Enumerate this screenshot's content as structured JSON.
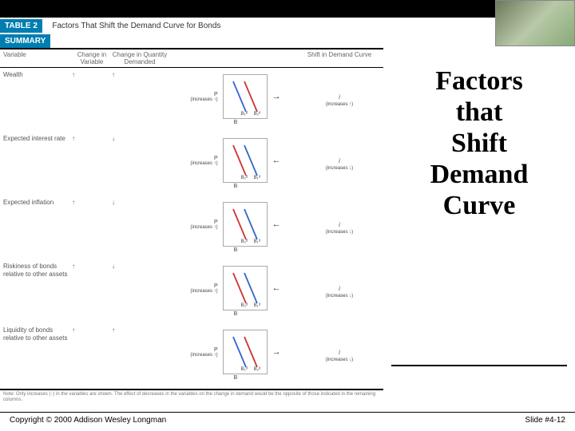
{
  "topbar": {
    "bg": "#000000"
  },
  "table": {
    "badge": "TABLE 2",
    "badge2": "SUMMARY",
    "title": "Factors That Shift the Demand Curve for Bonds",
    "headers": {
      "c1": "Variable",
      "c2": "Change in\nVariable",
      "c3": "Change in\nQuantity Demanded",
      "c4": "",
      "c5": "Shift in\nDemand Curve"
    },
    "rows": [
      {
        "variable": "Wealth",
        "chg_var": "↑",
        "chg_qty": "↑",
        "p_note": "(increases ↑)",
        "i_note": "(increases ↑)",
        "direction": "right",
        "blue_first": true
      },
      {
        "variable": "Expected interest rate",
        "chg_var": "↑",
        "chg_qty": "↓",
        "p_note": "(increases ↑)",
        "i_note": "(increases ↓)",
        "direction": "left",
        "blue_first": false
      },
      {
        "variable": "Expected inflation",
        "chg_var": "↑",
        "chg_qty": "↓",
        "p_note": "(increases ↑)",
        "i_note": "(increases ↓)",
        "direction": "left",
        "blue_first": false
      },
      {
        "variable": "Riskiness of bonds\nrelative to other assets",
        "chg_var": "↑",
        "chg_qty": "↓",
        "p_note": "(increases ↑)",
        "i_note": "(increases ↓)",
        "direction": "left",
        "blue_first": false
      },
      {
        "variable": "Liquidity of bonds\nrelative to other assets",
        "chg_var": "↑",
        "chg_qty": "↑",
        "p_note": "(increases ↑)",
        "i_note": "(increases ↓)",
        "direction": "right",
        "blue_first": true
      }
    ],
    "footnote": "Note: Only increases (↑) in the variables are shown. The effect of decreases in the variables on the change in demand would be the opposite of those indicated in the remaining columns.",
    "chart_labels": {
      "b1": "B₁ᵈ",
      "b2": "B₂ᵈ",
      "p": "P",
      "b": "B",
      "i": "i"
    },
    "colors": {
      "line1": "#3366cc",
      "line2": "#cc3333",
      "axis": "#888888"
    }
  },
  "sidebar": {
    "title_lines": [
      "Factors",
      "that",
      "Shift",
      "Demand",
      "Curve"
    ]
  },
  "footer": {
    "left": "Copyright © 2000 Addison Wesley Longman",
    "right": "Slide #4-12"
  }
}
